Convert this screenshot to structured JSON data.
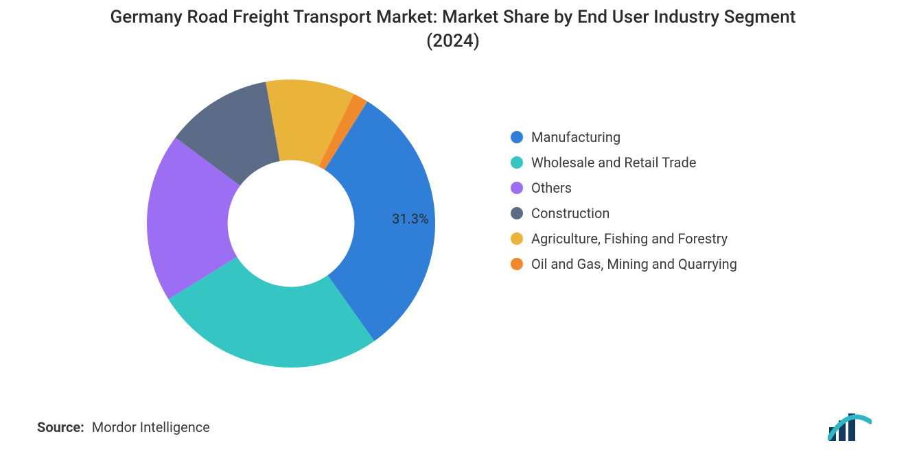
{
  "chart": {
    "type": "donut",
    "title": "Germany Road Freight Transport Market: Market Share by End User Industry Segment (2024)",
    "title_fontsize": 26,
    "title_color": "#2b2b2b",
    "background_color": "#ffffff",
    "inner_radius_ratio": 0.44,
    "outer_radius": 210,
    "start_angle_deg": -58,
    "slices": [
      {
        "label": "Manufacturing",
        "value": 31.3,
        "color": "#2f7fd9",
        "show_pct": true,
        "pct_text": "31.3%"
      },
      {
        "label": "Wholesale and Retail Trade",
        "value": 26.0,
        "color": "#35c5c2",
        "show_pct": false
      },
      {
        "label": "Others",
        "value": 19.0,
        "color": "#9b6ef3",
        "show_pct": false
      },
      {
        "label": "Construction",
        "value": 12.0,
        "color": "#5b6b88",
        "show_pct": false
      },
      {
        "label": "Agriculture, Fishing and Forestry",
        "value": 10.0,
        "color": "#eab43a",
        "show_pct": false
      },
      {
        "label": "Oil and Gas, Mining and Quarrying",
        "value": 1.7,
        "color": "#f08a2d",
        "show_pct": false
      }
    ],
    "pct_label_fontsize": 20,
    "pct_label_color": "#2b2b2b",
    "legend": {
      "position": "right",
      "fontsize": 20,
      "text_color": "#3a3a3a",
      "swatch_shape": "circle",
      "swatch_size": 18
    }
  },
  "source": {
    "prefix": "Source:",
    "text": "Mordor Intelligence",
    "fontsize": 20,
    "color": "#3a3a3a"
  },
  "logo": {
    "bar_color": "#163a5f",
    "accent_color": "#2fb6c3"
  }
}
